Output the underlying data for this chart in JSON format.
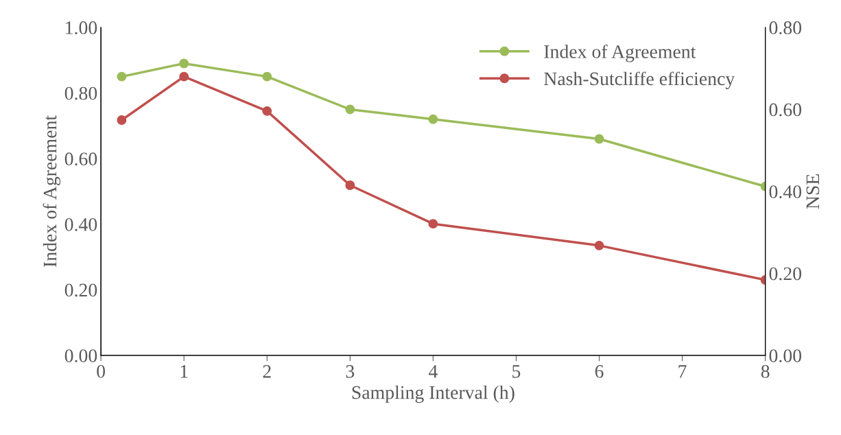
{
  "chart_data": {
    "type": "line",
    "xlabel": "Sampling Interval (h)",
    "ylabel": "Index of Agreement",
    "y2label": "NSE",
    "x": [
      0.25,
      1,
      2,
      3,
      4,
      6,
      8
    ],
    "series": [
      {
        "name": "Index of Agreement",
        "color": "#9bbb59",
        "values": [
          0.85,
          0.89,
          0.85,
          0.75,
          0.72,
          0.66,
          0.515
        ]
      },
      {
        "name": "Nash-Sutcliffe efficiency",
        "color": "#c0504d",
        "axis": "y2",
        "values": [
          0.574,
          0.68,
          0.596,
          0.415,
          0.321,
          0.268,
          0.184
        ]
      }
    ],
    "xlim": [
      0,
      8
    ],
    "xticks": [
      0,
      1,
      2,
      3,
      4,
      5,
      6,
      7,
      8
    ],
    "ylim": [
      0,
      1
    ],
    "yticks": [
      {
        "value": 0,
        "label": "0.00"
      },
      {
        "value": 0.2,
        "label": "0.20"
      },
      {
        "value": 0.4,
        "label": "0.40"
      },
      {
        "value": 0.6,
        "label": "0.60"
      },
      {
        "value": 0.8,
        "label": "0.80"
      },
      {
        "value": 1,
        "label": "1.00"
      }
    ],
    "y2lim": [
      0,
      0.8
    ],
    "y2ticks": [
      {
        "value": 0,
        "label": "0.00"
      },
      {
        "value": 0.2,
        "label": "0.20"
      },
      {
        "value": 0.4,
        "label": "0.40"
      },
      {
        "value": 0.6,
        "label": "0.60"
      },
      {
        "value": 0.8,
        "label": "0.80"
      }
    ],
    "marker": "circle",
    "line_style": "solid",
    "legend": "top right",
    "grid": false
  }
}
